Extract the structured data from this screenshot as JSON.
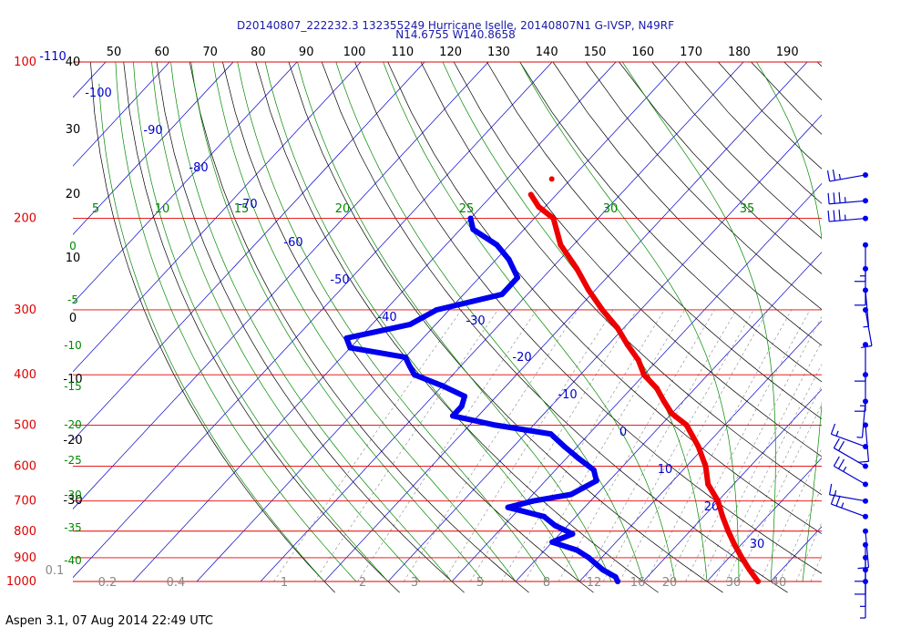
{
  "chart_data": {
    "type": "line",
    "title_line1": "D20140807_222232.3 132355249 Hurricane Iselle, 20140807N1 G-IVSP, N49RF",
    "title_line2": "N14.6755 W140.8658",
    "footer": "Aspen 3.1, 07 Aug 2014  22:49 UTC",
    "colors": {
      "pressure_lines": "#e00000",
      "isotherms": "#0000cc",
      "dry_adiabats": "#000000",
      "moist_adiabats": "#008800",
      "mixing_ratio": "#888888",
      "temperature": "#ee0000",
      "dewpoint": "#0000ee"
    },
    "top_axis_ticks": [
      "50",
      "60",
      "70",
      "80",
      "90",
      "100",
      "110",
      "120",
      "130",
      "140",
      "150",
      "160",
      "170",
      "180",
      "190"
    ],
    "pressure_labels": [
      {
        "p": 100,
        "label": "100"
      },
      {
        "p": 200,
        "label": "200"
      },
      {
        "p": 300,
        "label": "300"
      },
      {
        "p": 400,
        "label": "400"
      },
      {
        "p": 500,
        "label": "500"
      },
      {
        "p": 600,
        "label": "600"
      },
      {
        "p": 700,
        "label": "700"
      },
      {
        "p": 800,
        "label": "800"
      },
      {
        "p": 900,
        "label": "900"
      },
      {
        "p": 1000,
        "label": "1000"
      }
    ],
    "left_black_labels": [
      "40",
      "30",
      "20",
      "10",
      "0",
      "-10",
      "-20",
      "-30"
    ],
    "left_green_labels": [
      "0",
      "-5",
      "-10",
      "-15",
      "-20",
      "-25",
      "-30",
      "-35",
      "-40"
    ],
    "moist_top_labels": [
      "5",
      "10",
      "15",
      "20",
      "25",
      "30",
      "35"
    ],
    "isotherm_labels": [
      "-110",
      "-100",
      "-90",
      "-80",
      "-70",
      "-60",
      "-50",
      "-40",
      "-30",
      "-20",
      "-10",
      "0",
      "10",
      "20",
      "30"
    ],
    "mixing_ratio_labels": [
      "0.1",
      "0.2",
      "0.4",
      "1",
      "2",
      "3",
      "5",
      "8",
      "12",
      "16",
      "20",
      "30",
      "40"
    ],
    "temperature": [
      {
        "p": 180,
        "t": -64
      },
      {
        "p": 190,
        "t": -61
      },
      {
        "p": 200,
        "t": -57
      },
      {
        "p": 225,
        "t": -52
      },
      {
        "p": 250,
        "t": -46
      },
      {
        "p": 275,
        "t": -41
      },
      {
        "p": 300,
        "t": -36
      },
      {
        "p": 325,
        "t": -31
      },
      {
        "p": 350,
        "t": -27
      },
      {
        "p": 375,
        "t": -23
      },
      {
        "p": 400,
        "t": -20
      },
      {
        "p": 425,
        "t": -16
      },
      {
        "p": 450,
        "t": -13
      },
      {
        "p": 475,
        "t": -10
      },
      {
        "p": 500,
        "t": -6
      },
      {
        "p": 550,
        "t": -1
      },
      {
        "p": 600,
        "t": 3
      },
      {
        "p": 650,
        "t": 6
      },
      {
        "p": 700,
        "t": 10
      },
      {
        "p": 750,
        "t": 13
      },
      {
        "p": 800,
        "t": 16
      },
      {
        "p": 850,
        "t": 19
      },
      {
        "p": 900,
        "t": 22
      },
      {
        "p": 950,
        "t": 25
      },
      {
        "p": 1000,
        "t": 28
      }
    ],
    "dewpoint": [
      {
        "p": 200,
        "t": -70
      },
      {
        "p": 210,
        "t": -68
      },
      {
        "p": 225,
        "t": -62
      },
      {
        "p": 240,
        "t": -58
      },
      {
        "p": 260,
        "t": -54
      },
      {
        "p": 280,
        "t": -54
      },
      {
        "p": 300,
        "t": -62
      },
      {
        "p": 320,
        "t": -64
      },
      {
        "p": 340,
        "t": -72
      },
      {
        "p": 355,
        "t": -70
      },
      {
        "p": 370,
        "t": -60
      },
      {
        "p": 385,
        "t": -58
      },
      {
        "p": 400,
        "t": -56
      },
      {
        "p": 420,
        "t": -50
      },
      {
        "p": 440,
        "t": -45
      },
      {
        "p": 460,
        "t": -44
      },
      {
        "p": 480,
        "t": -44
      },
      {
        "p": 500,
        "t": -36
      },
      {
        "p": 520,
        "t": -26
      },
      {
        "p": 550,
        "t": -22
      },
      {
        "p": 580,
        "t": -18
      },
      {
        "p": 610,
        "t": -14
      },
      {
        "p": 640,
        "t": -12
      },
      {
        "p": 680,
        "t": -14
      },
      {
        "p": 700,
        "t": -19
      },
      {
        "p": 720,
        "t": -22
      },
      {
        "p": 750,
        "t": -15
      },
      {
        "p": 780,
        "t": -12
      },
      {
        "p": 810,
        "t": -8
      },
      {
        "p": 840,
        "t": -10
      },
      {
        "p": 870,
        "t": -5
      },
      {
        "p": 900,
        "t": -2
      },
      {
        "p": 950,
        "t": 2
      },
      {
        "p": 980,
        "t": 5
      },
      {
        "p": 1000,
        "t": 6
      }
    ],
    "isolated_point": {
      "p": 168,
      "t": -63
    },
    "wind_barbs": [
      {
        "p": 165,
        "dir": 260,
        "spd": 25
      },
      {
        "p": 185,
        "dir": 265,
        "spd": 35
      },
      {
        "p": 200,
        "dir": 265,
        "spd": 35
      },
      {
        "p": 225,
        "dir": 180,
        "spd": 15
      },
      {
        "p": 250,
        "dir": 180,
        "spd": 10
      },
      {
        "p": 275,
        "dir": 175,
        "spd": 5
      },
      {
        "p": 300,
        "dir": 170,
        "spd": 10
      },
      {
        "p": 350,
        "dir": 180,
        "spd": 10
      },
      {
        "p": 400,
        "dir": 180,
        "spd": 15
      },
      {
        "p": 450,
        "dir": 185,
        "spd": 5
      },
      {
        "p": 500,
        "dir": 175,
        "spd": 10
      },
      {
        "p": 550,
        "dir": 290,
        "spd": 15
      },
      {
        "p": 600,
        "dir": 300,
        "spd": 20
      },
      {
        "p": 650,
        "dir": 300,
        "spd": 25
      },
      {
        "p": 700,
        "dir": 280,
        "spd": 15
      },
      {
        "p": 750,
        "dir": 290,
        "spd": 25
      },
      {
        "p": 800,
        "dir": 175,
        "spd": 10
      },
      {
        "p": 850,
        "dir": 180,
        "spd": 10
      },
      {
        "p": 900,
        "dir": 180,
        "spd": 10
      },
      {
        "p": 950,
        "dir": 180,
        "spd": 5
      },
      {
        "p": 1000,
        "dir": 180,
        "spd": 5
      }
    ]
  }
}
